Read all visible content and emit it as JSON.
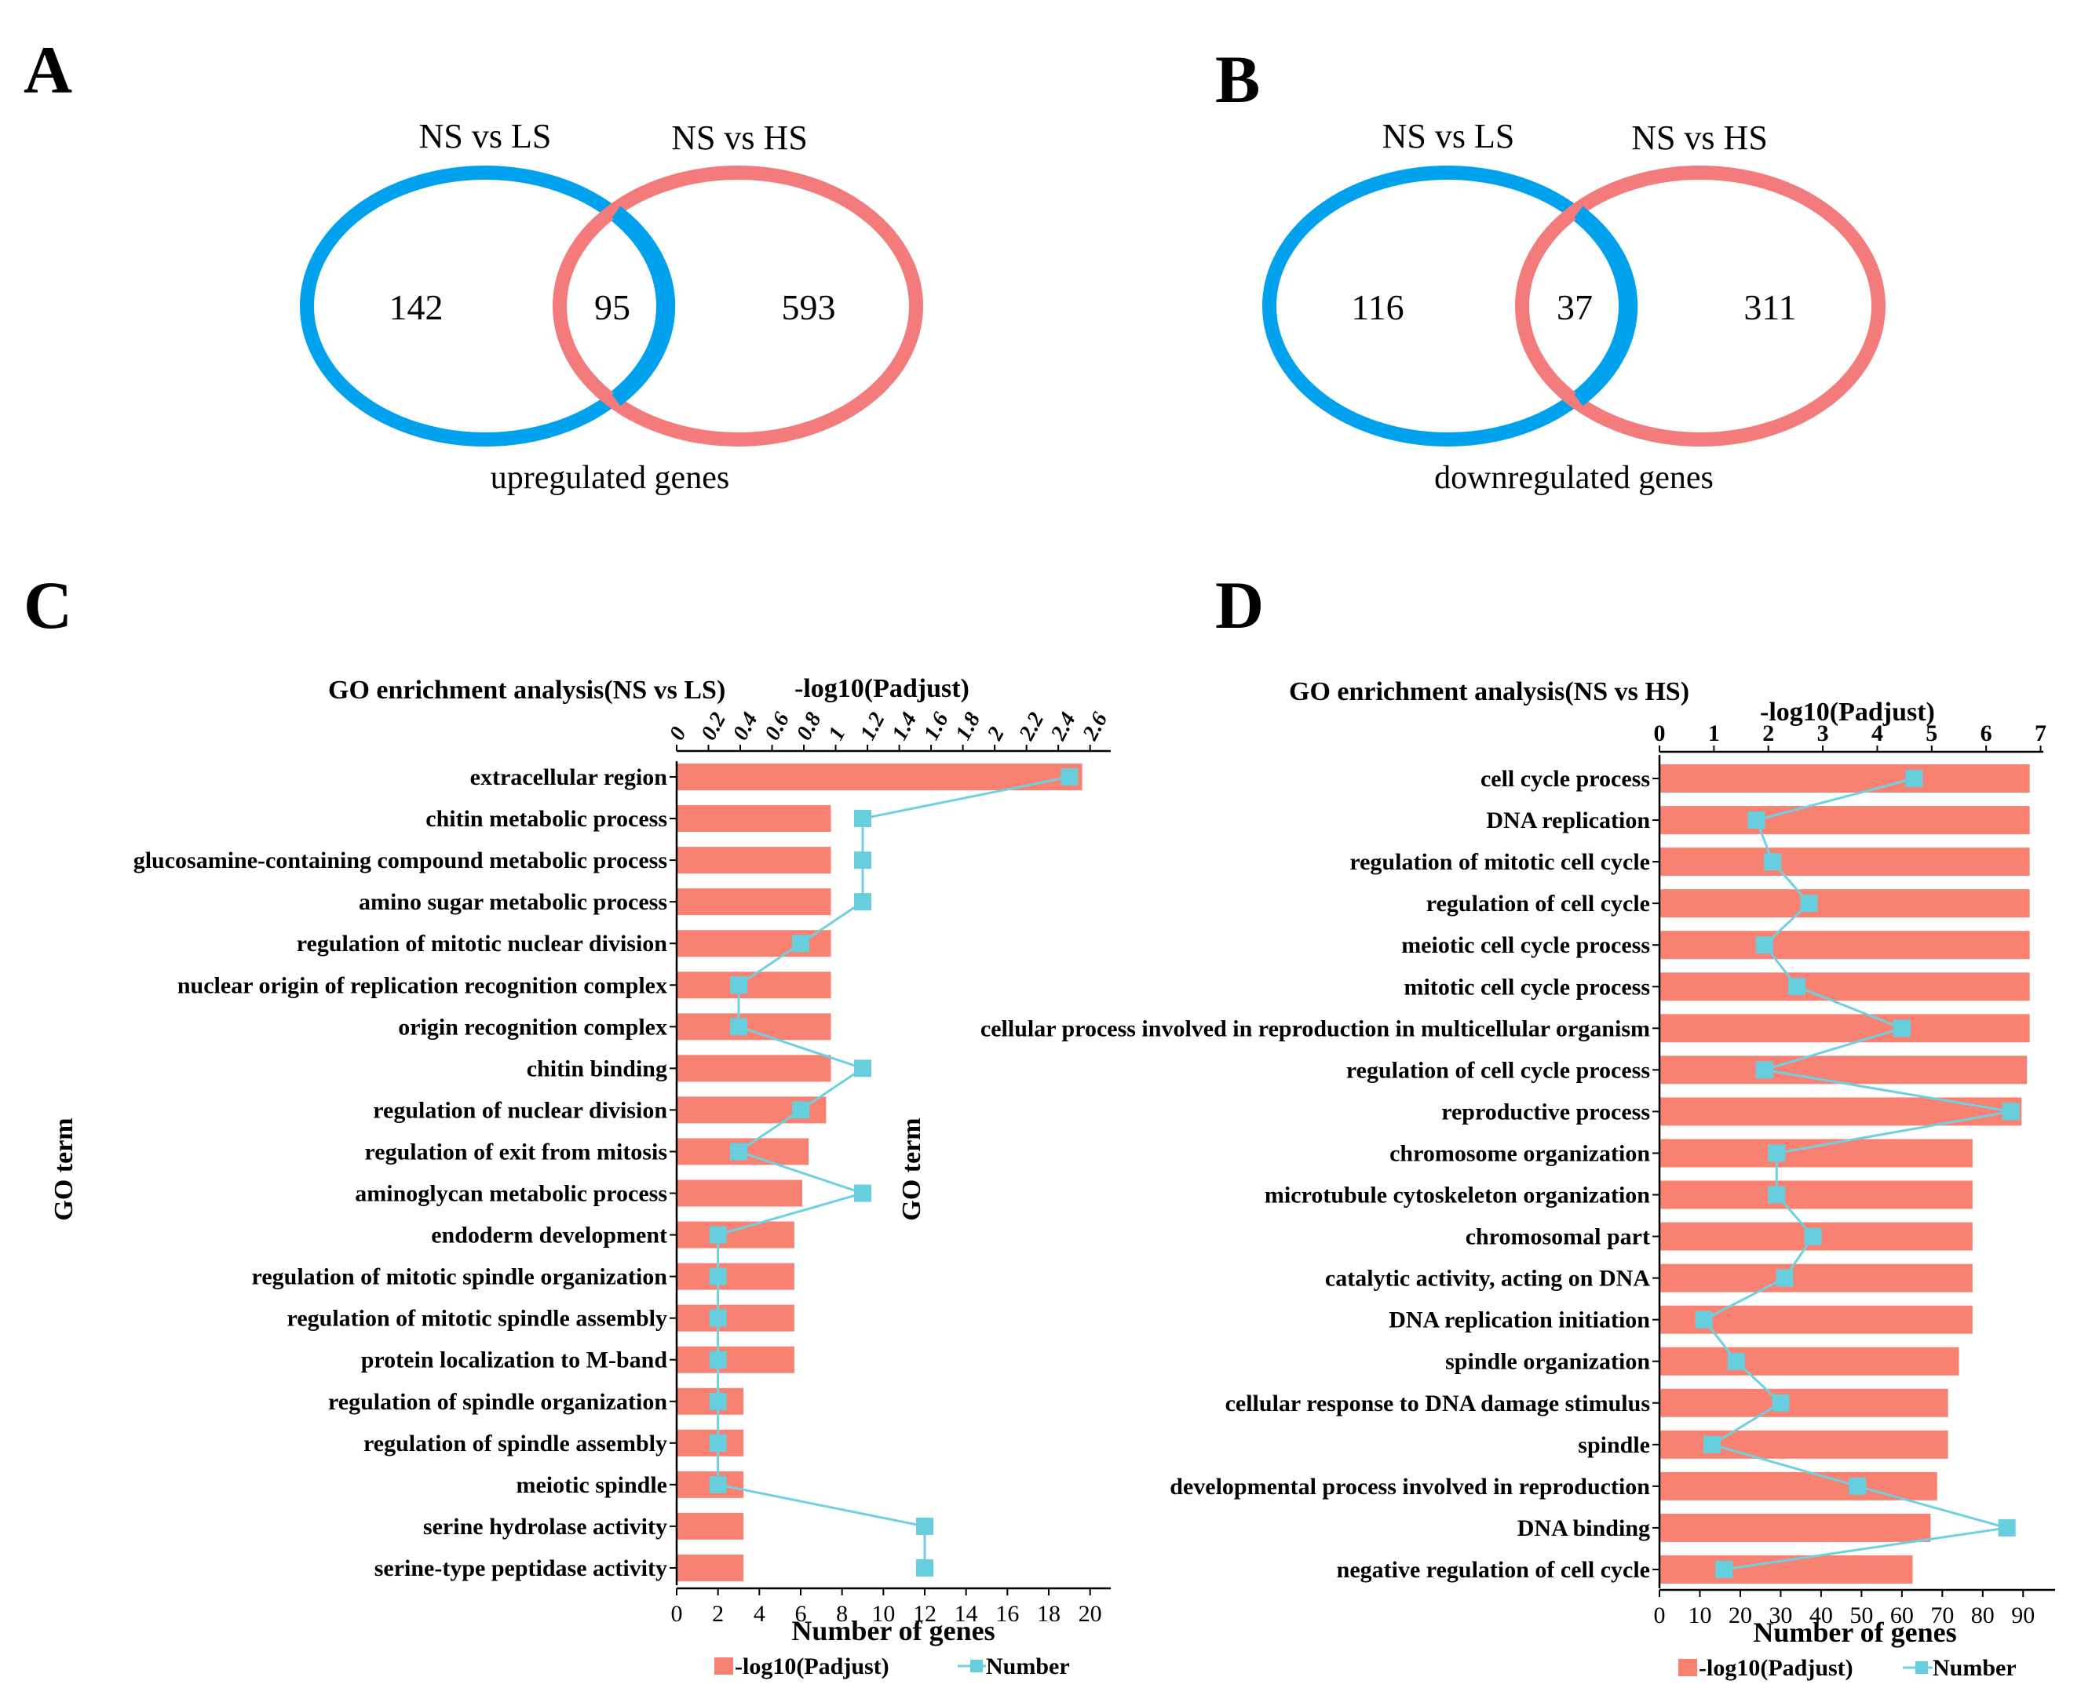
{
  "colors": {
    "blue": "#00A2EE",
    "red": "#F47B7B",
    "bar": "#F98172",
    "line": "#70D0DF",
    "marker": "#67CEDD",
    "ink": "#000000"
  },
  "panels": {
    "A": {
      "label": "A",
      "left_title": "NS vs LS",
      "right_title": "NS vs HS",
      "left_only": "142",
      "overlap": "95",
      "right_only": "593",
      "caption": "upregulated genes"
    },
    "B": {
      "label": "B",
      "left_title": "NS vs LS",
      "right_title": "NS vs HS",
      "left_only": "116",
      "overlap": "37",
      "right_only": "311",
      "caption": "downregulated genes"
    },
    "C": {
      "label": "C"
    },
    "D": {
      "label": "D"
    }
  },
  "chart_data": [
    {
      "type": "bar",
      "panel": "C",
      "title": "GO enrichment analysis(NS vs LS)",
      "top_axis_label": "-log10(Padjust)",
      "xlabel": "Number of genes",
      "ylabel": "GO term",
      "top_ticks": [
        "0",
        "0.2",
        "0.4",
        "0.6",
        "0.8",
        "1",
        "1.2",
        "1.4",
        "1.6",
        "1.8",
        "2",
        "2.2",
        "2.4",
        "2.6"
      ],
      "bottom_ticks": [
        "0",
        "2",
        "4",
        "6",
        "8",
        "10",
        "12",
        "14",
        "16",
        "18",
        "20"
      ],
      "top_range": [
        0,
        2.73
      ],
      "bottom_range": [
        0,
        21
      ],
      "legend": [
        "-log10(Padjust)",
        "Number"
      ],
      "categories": [
        "extracellular region",
        "chitin metabolic process",
        "glucosamine-containing compound metabolic process",
        "amino sugar metabolic process",
        "regulation of mitotic nuclear division",
        "nuclear origin of replication recognition complex",
        "origin recognition complex",
        "chitin binding",
        "regulation of nuclear division",
        "regulation of exit from mitosis",
        "aminoglycan metabolic process",
        "endoderm development",
        "regulation of mitotic spindle organization",
        "regulation of mitotic spindle assembly",
        "protein localization to M-band",
        "regulation of spindle organization",
        "regulation of spindle assembly",
        "meiotic spindle",
        "serine hydrolase activity",
        "serine-type peptidase activity"
      ],
      "series": [
        {
          "name": "-log10(Padjust)",
          "values": [
            2.55,
            0.97,
            0.97,
            0.97,
            0.97,
            0.97,
            0.97,
            0.97,
            0.94,
            0.83,
            0.79,
            0.74,
            0.74,
            0.74,
            0.74,
            0.42,
            0.42,
            0.42,
            0.42,
            0.42
          ]
        },
        {
          "name": "Number",
          "values": [
            19,
            9,
            9,
            9,
            6,
            3,
            3,
            9,
            6,
            3,
            9,
            2,
            2,
            2,
            2,
            2,
            2,
            2,
            12,
            12
          ]
        }
      ]
    },
    {
      "type": "bar",
      "panel": "D",
      "title": "GO enrichment analysis(NS vs HS)",
      "top_axis_label": "-log10(Padjust)",
      "xlabel": "Number of genes",
      "ylabel": "GO term",
      "top_ticks": [
        "0",
        "1",
        "2",
        "3",
        "4",
        "5",
        "6",
        "7"
      ],
      "bottom_ticks": [
        "0",
        "10",
        "20",
        "30",
        "40",
        "50",
        "60",
        "70",
        "80",
        "90"
      ],
      "top_range": [
        0,
        7.05
      ],
      "bottom_range": [
        0,
        95
      ],
      "legend": [
        "-log10(Padjust)",
        "Number"
      ],
      "categories": [
        "cell cycle process",
        "DNA replication",
        "regulation of mitotic cell cycle",
        "regulation of cell cycle",
        "meiotic cell cycle process",
        "mitotic cell cycle process",
        "cellular process involved in reproduction in multicellular organism",
        "regulation of cell cycle process",
        "reproductive process",
        "chromosome organization",
        "microtubule cytoskeleton organization",
        "chromosomal part",
        "catalytic activity, acting on DNA",
        "DNA replication initiation",
        "spindle organization",
        "cellular response to DNA damage stimulus",
        "spindle",
        "developmental process involved in reproduction",
        "DNA binding",
        "negative regulation of cell cycle"
      ],
      "series": [
        {
          "name": "-log10(Padjust)",
          "values": [
            6.8,
            6.8,
            6.8,
            6.8,
            6.8,
            6.8,
            6.8,
            6.75,
            6.65,
            5.75,
            5.75,
            5.75,
            5.75,
            5.75,
            5.5,
            5.3,
            5.3,
            5.1,
            4.98,
            4.65
          ]
        },
        {
          "name": "Number",
          "values": [
            63,
            24,
            28,
            37,
            26,
            34,
            60,
            26,
            87,
            29,
            29,
            38,
            31,
            11,
            19,
            30,
            13,
            49,
            86,
            16
          ]
        }
      ]
    }
  ]
}
